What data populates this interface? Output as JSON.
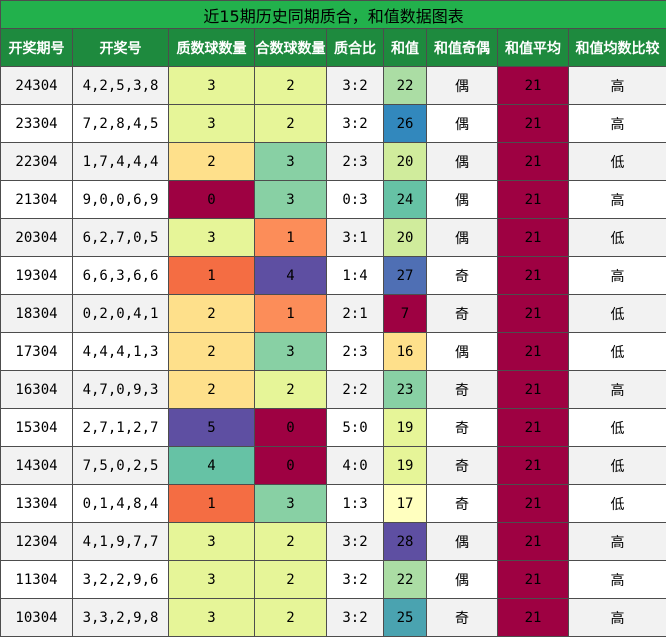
{
  "title": "近15期历史同期质合，和值数据图表",
  "headers": [
    "开奖期号",
    "开奖号",
    "质数球数量",
    "合数球数量",
    "质合比",
    "和值",
    "和值奇偶",
    "和值平均",
    "和值均数比较"
  ],
  "colors": {
    "title_bg": "#22b14c",
    "header_bg": "#1e8a3e",
    "avg_bg": "#9e0142",
    "count_scale": {
      "0": "#9e0142",
      "1": "#f46d43",
      "2": "#fee08b",
      "3": "#e6f598",
      "4": "#66c2a5",
      "5": "#5e4fa2"
    },
    "composite_scale": {
      "0": "#9e0142",
      "1": "#fc8d59",
      "2": "#e6f598",
      "3": "#88d0a4",
      "4": "#5e4fa2"
    },
    "sum_scale": {
      "7": "#9e0142",
      "16": "#fee08b",
      "17": "#ffffbf",
      "19": "#e6f598",
      "20": "#d0ec9c",
      "22": "#abdda4",
      "23": "#88d0a4",
      "24": "#66c2a5",
      "25": "#4aa3b0",
      "26": "#3288bd",
      "27": "#4f6fb4",
      "28": "#5e4fa2"
    }
  },
  "rows": [
    {
      "period": "24304",
      "numbers": "4,2,5,3,8",
      "prime": "3",
      "composite": "2",
      "ratio": "3:2",
      "sum": "22",
      "parity": "偶",
      "avg": "21",
      "compare": "高"
    },
    {
      "period": "23304",
      "numbers": "7,2,8,4,5",
      "prime": "3",
      "composite": "2",
      "ratio": "3:2",
      "sum": "26",
      "parity": "偶",
      "avg": "21",
      "compare": "高"
    },
    {
      "period": "22304",
      "numbers": "1,7,4,4,4",
      "prime": "2",
      "composite": "3",
      "ratio": "2:3",
      "sum": "20",
      "parity": "偶",
      "avg": "21",
      "compare": "低"
    },
    {
      "period": "21304",
      "numbers": "9,0,0,6,9",
      "prime": "0",
      "composite": "3",
      "ratio": "0:3",
      "sum": "24",
      "parity": "偶",
      "avg": "21",
      "compare": "高"
    },
    {
      "period": "20304",
      "numbers": "6,2,7,0,5",
      "prime": "3",
      "composite": "1",
      "ratio": "3:1",
      "sum": "20",
      "parity": "偶",
      "avg": "21",
      "compare": "低"
    },
    {
      "period": "19304",
      "numbers": "6,6,3,6,6",
      "prime": "1",
      "composite": "4",
      "ratio": "1:4",
      "sum": "27",
      "parity": "奇",
      "avg": "21",
      "compare": "高"
    },
    {
      "period": "18304",
      "numbers": "0,2,0,4,1",
      "prime": "2",
      "composite": "1",
      "ratio": "2:1",
      "sum": "7",
      "parity": "奇",
      "avg": "21",
      "compare": "低"
    },
    {
      "period": "17304",
      "numbers": "4,4,4,1,3",
      "prime": "2",
      "composite": "3",
      "ratio": "2:3",
      "sum": "16",
      "parity": "偶",
      "avg": "21",
      "compare": "低"
    },
    {
      "period": "16304",
      "numbers": "4,7,0,9,3",
      "prime": "2",
      "composite": "2",
      "ratio": "2:2",
      "sum": "23",
      "parity": "奇",
      "avg": "21",
      "compare": "高"
    },
    {
      "period": "15304",
      "numbers": "2,7,1,2,7",
      "prime": "5",
      "composite": "0",
      "ratio": "5:0",
      "sum": "19",
      "parity": "奇",
      "avg": "21",
      "compare": "低"
    },
    {
      "period": "14304",
      "numbers": "7,5,0,2,5",
      "prime": "4",
      "composite": "0",
      "ratio": "4:0",
      "sum": "19",
      "parity": "奇",
      "avg": "21",
      "compare": "低"
    },
    {
      "period": "13304",
      "numbers": "0,1,4,8,4",
      "prime": "1",
      "composite": "3",
      "ratio": "1:3",
      "sum": "17",
      "parity": "奇",
      "avg": "21",
      "compare": "低"
    },
    {
      "period": "12304",
      "numbers": "4,1,9,7,7",
      "prime": "3",
      "composite": "2",
      "ratio": "3:2",
      "sum": "28",
      "parity": "偶",
      "avg": "21",
      "compare": "高"
    },
    {
      "period": "11304",
      "numbers": "3,2,2,9,6",
      "prime": "3",
      "composite": "2",
      "ratio": "3:2",
      "sum": "22",
      "parity": "偶",
      "avg": "21",
      "compare": "高"
    },
    {
      "period": "10304",
      "numbers": "3,3,2,9,8",
      "prime": "3",
      "composite": "2",
      "ratio": "3:2",
      "sum": "25",
      "parity": "奇",
      "avg": "21",
      "compare": "高"
    }
  ]
}
